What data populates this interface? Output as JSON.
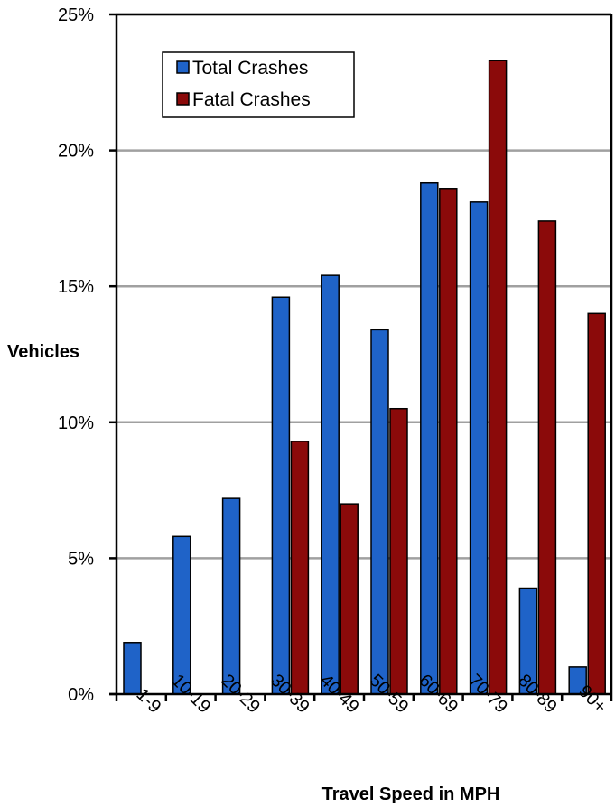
{
  "chart_data": {
    "type": "bar",
    "title": "",
    "xlabel": "Travel Speed in MPH",
    "ylabel": "Vehicles",
    "categories": [
      "1-9",
      "10-19",
      "20-29",
      "30-39",
      "40-49",
      "50-59",
      "60-69",
      "70-79",
      "80-89",
      "90+"
    ],
    "series": [
      {
        "name": "Total Crashes",
        "color": "#1f63c8",
        "values": [
          1.9,
          5.8,
          7.2,
          14.6,
          15.4,
          13.4,
          18.8,
          18.1,
          3.9,
          1.0
        ]
      },
      {
        "name": "Fatal Crashes",
        "color": "#8b0a0a",
        "values": [
          0,
          0,
          0,
          9.3,
          7.0,
          10.5,
          18.6,
          23.3,
          17.4,
          14.0
        ]
      }
    ],
    "ylim": [
      0,
      25
    ],
    "yticks": [
      0,
      5,
      10,
      15,
      20,
      25
    ],
    "ytick_labels": [
      "0%",
      "5%",
      "10%",
      "15%",
      "20%",
      "25%"
    ],
    "grid": true,
    "legend_position": "top-left"
  }
}
